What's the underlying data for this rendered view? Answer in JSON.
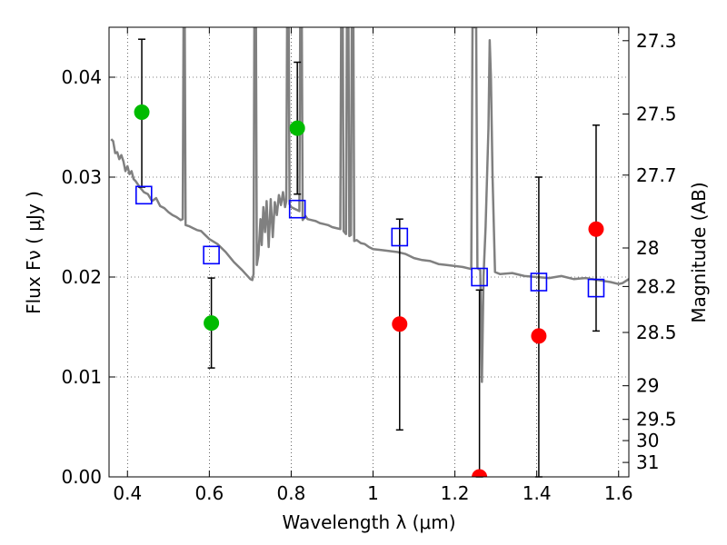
{
  "chart_data": {
    "type": "scatter",
    "xlabel": "Wavelength  λ (μm)",
    "ylabel": "Flux  Fν  ( μJy )",
    "ylabel_right": "Magnitude (AB)",
    "xlim": [
      0.355,
      1.625
    ],
    "ylim": [
      0.0,
      0.045
    ],
    "grid": true,
    "x_ticks": [
      {
        "v": 0.4,
        "label": "0.4"
      },
      {
        "v": 0.6,
        "label": "0.6"
      },
      {
        "v": 0.8,
        "label": "0.8"
      },
      {
        "v": 1.0,
        "label": "1"
      },
      {
        "v": 1.2,
        "label": "1.2"
      },
      {
        "v": 1.4,
        "label": "1.4"
      },
      {
        "v": 1.6,
        "label": "1.6"
      }
    ],
    "y_ticks": [
      {
        "v": 0.0,
        "label": "0.00"
      },
      {
        "v": 0.01,
        "label": "0.01"
      },
      {
        "v": 0.02,
        "label": "0.02"
      },
      {
        "v": 0.03,
        "label": "0.03"
      },
      {
        "v": 0.04,
        "label": "0.04"
      }
    ],
    "mag_ticks": [
      {
        "mag": 27.3,
        "label": "27.3"
      },
      {
        "mag": 27.5,
        "label": "27.5"
      },
      {
        "mag": 27.7,
        "label": "27.7"
      },
      {
        "mag": 28.0,
        "label": "28"
      },
      {
        "mag": 28.2,
        "label": "28.2"
      },
      {
        "mag": 28.5,
        "label": "28.5"
      },
      {
        "mag": 29.0,
        "label": "29"
      },
      {
        "mag": 29.5,
        "label": "29.5"
      },
      {
        "mag": 30.0,
        "label": "30"
      },
      {
        "mag": 31.0,
        "label": "31"
      }
    ],
    "colors": {
      "template": "#808080",
      "detections": "#00bb00",
      "nondetections": "#ff0000",
      "model": "#0000ff",
      "errorbar": "#000000"
    },
    "series": [
      {
        "kind": "template_spectrum",
        "points": [
          [
            0.36,
            0.0338
          ],
          [
            0.365,
            0.0336
          ],
          [
            0.37,
            0.0324
          ],
          [
            0.375,
            0.0325
          ],
          [
            0.38,
            0.0318
          ],
          [
            0.385,
            0.0322
          ],
          [
            0.39,
            0.0316
          ],
          [
            0.395,
            0.0306
          ],
          [
            0.4,
            0.0311
          ],
          [
            0.405,
            0.0303
          ],
          [
            0.41,
            0.0306
          ],
          [
            0.415,
            0.0298
          ],
          [
            0.42,
            0.0296
          ],
          [
            0.43,
            0.029
          ],
          [
            0.44,
            0.0285
          ],
          [
            0.45,
            0.0283
          ],
          [
            0.46,
            0.0276
          ],
          [
            0.47,
            0.0279
          ],
          [
            0.48,
            0.0271
          ],
          [
            0.49,
            0.0269
          ],
          [
            0.5,
            0.0265
          ],
          [
            0.51,
            0.0262
          ],
          [
            0.52,
            0.026
          ],
          [
            0.53,
            0.0257
          ],
          [
            0.535,
            0.0258
          ],
          [
            0.537,
            0.045
          ],
          [
            0.54,
            0.045
          ],
          [
            0.542,
            0.0252
          ],
          [
            0.55,
            0.0251
          ],
          [
            0.56,
            0.0249
          ],
          [
            0.57,
            0.0247
          ],
          [
            0.58,
            0.0246
          ],
          [
            0.59,
            0.0242
          ],
          [
            0.6,
            0.0238
          ],
          [
            0.62,
            0.0233
          ],
          [
            0.64,
            0.0225
          ],
          [
            0.66,
            0.0215
          ],
          [
            0.68,
            0.0207
          ],
          [
            0.7,
            0.0198
          ],
          [
            0.705,
            0.0197
          ],
          [
            0.708,
            0.0203
          ],
          [
            0.71,
            0.045
          ],
          [
            0.714,
            0.045
          ],
          [
            0.716,
            0.0212
          ],
          [
            0.72,
            0.0222
          ],
          [
            0.725,
            0.0258
          ],
          [
            0.728,
            0.0232
          ],
          [
            0.732,
            0.027
          ],
          [
            0.736,
            0.0245
          ],
          [
            0.74,
            0.0276
          ],
          [
            0.745,
            0.023
          ],
          [
            0.75,
            0.0278
          ],
          [
            0.755,
            0.024
          ],
          [
            0.76,
            0.0275
          ],
          [
            0.765,
            0.0262
          ],
          [
            0.77,
            0.0282
          ],
          [
            0.775,
            0.0272
          ],
          [
            0.78,
            0.0285
          ],
          [
            0.785,
            0.027
          ],
          [
            0.788,
            0.0276
          ],
          [
            0.79,
            0.045
          ],
          [
            0.794,
            0.045
          ],
          [
            0.796,
            0.0273
          ],
          [
            0.8,
            0.027
          ],
          [
            0.81,
            0.0268
          ],
          [
            0.82,
            0.0266
          ],
          [
            0.822,
            0.045
          ],
          [
            0.826,
            0.045
          ],
          [
            0.828,
            0.0257
          ],
          [
            0.835,
            0.0261
          ],
          [
            0.84,
            0.0258
          ],
          [
            0.85,
            0.0257
          ],
          [
            0.86,
            0.0256
          ],
          [
            0.87,
            0.0254
          ],
          [
            0.88,
            0.0253
          ],
          [
            0.89,
            0.0252
          ],
          [
            0.9,
            0.025
          ],
          [
            0.91,
            0.0249
          ],
          [
            0.92,
            0.0248
          ],
          [
            0.922,
            0.045
          ],
          [
            0.926,
            0.045
          ],
          [
            0.928,
            0.0246
          ],
          [
            0.934,
            0.0243
          ],
          [
            0.936,
            0.045
          ],
          [
            0.94,
            0.045
          ],
          [
            0.942,
            0.0241
          ],
          [
            0.946,
            0.0242
          ],
          [
            0.948,
            0.045
          ],
          [
            0.952,
            0.045
          ],
          [
            0.954,
            0.0236
          ],
          [
            0.96,
            0.0237
          ],
          [
            0.97,
            0.0234
          ],
          [
            0.98,
            0.0233
          ],
          [
            0.99,
            0.023
          ],
          [
            1.0,
            0.0228
          ],
          [
            1.02,
            0.0227
          ],
          [
            1.04,
            0.0226
          ],
          [
            1.06,
            0.0225
          ],
          [
            1.08,
            0.0223
          ],
          [
            1.1,
            0.0219
          ],
          [
            1.12,
            0.0217
          ],
          [
            1.14,
            0.0216
          ],
          [
            1.16,
            0.0213
          ],
          [
            1.18,
            0.0212
          ],
          [
            1.2,
            0.0211
          ],
          [
            1.22,
            0.021
          ],
          [
            1.24,
            0.0208
          ],
          [
            1.243,
            0.045
          ],
          [
            1.252,
            0.045
          ],
          [
            1.255,
            0.0209
          ],
          [
            1.262,
            0.0207
          ],
          [
            1.266,
            0.0095
          ],
          [
            1.268,
            0.0148
          ],
          [
            1.27,
            0.0201
          ],
          [
            1.275,
            0.025
          ],
          [
            1.282,
            0.0349
          ],
          [
            1.285,
            0.0437
          ],
          [
            1.288,
            0.04
          ],
          [
            1.292,
            0.03
          ],
          [
            1.298,
            0.0205
          ],
          [
            1.31,
            0.0203
          ],
          [
            1.34,
            0.0204
          ],
          [
            1.37,
            0.0201
          ],
          [
            1.4,
            0.02
          ],
          [
            1.43,
            0.0199
          ],
          [
            1.46,
            0.0201
          ],
          [
            1.49,
            0.0198
          ],
          [
            1.52,
            0.0199
          ],
          [
            1.55,
            0.0197
          ],
          [
            1.58,
            0.0195
          ],
          [
            1.6,
            0.0193
          ],
          [
            1.61,
            0.0194
          ],
          [
            1.625,
            0.0198
          ]
        ]
      },
      {
        "kind": "observed_detections",
        "points": [
          {
            "x": 0.435,
            "y": 0.0365,
            "err_lo": 0.0075,
            "err_hi": 0.0073
          },
          {
            "x": 0.605,
            "y": 0.0154,
            "err_lo": 0.0045,
            "err_hi": 0.0045
          },
          {
            "x": 0.815,
            "y": 0.0349,
            "err_lo": 0.0066,
            "err_hi": 0.0066
          }
        ]
      },
      {
        "kind": "observed_nondetections",
        "points": [
          {
            "x": 1.065,
            "y": 0.0153,
            "err_lo": 0.0106,
            "err_hi": 0.0105
          },
          {
            "x": 1.26,
            "y": 0.0,
            "err_lo": 0.0,
            "err_hi": 0.0187
          },
          {
            "x": 1.405,
            "y": 0.0141,
            "err_lo": 0.0141,
            "err_hi": 0.0159
          },
          {
            "x": 1.545,
            "y": 0.0248,
            "err_lo": 0.0102,
            "err_hi": 0.0104
          }
        ]
      },
      {
        "kind": "model_photometry",
        "points": [
          {
            "x": 0.44,
            "y": 0.0282
          },
          {
            "x": 0.605,
            "y": 0.0222
          },
          {
            "x": 0.815,
            "y": 0.0268
          },
          {
            "x": 1.065,
            "y": 0.024
          },
          {
            "x": 1.26,
            "y": 0.02
          },
          {
            "x": 1.405,
            "y": 0.0195
          },
          {
            "x": 1.545,
            "y": 0.0189
          }
        ]
      }
    ]
  }
}
